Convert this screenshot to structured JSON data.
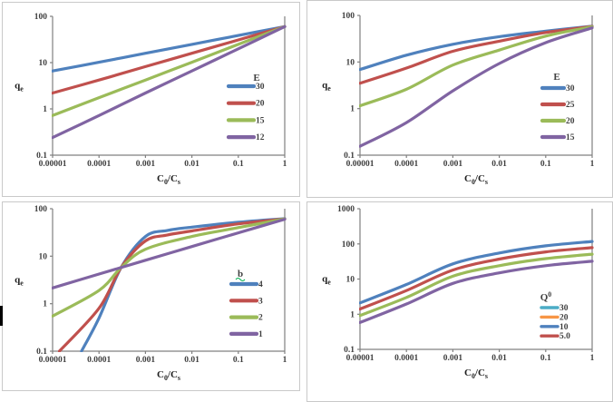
{
  "palette": {
    "blue": "#4F81BD",
    "red": "#C0504D",
    "green": "#9BBB59",
    "purple": "#8064A2",
    "teal": "#4BACC6",
    "orange": "#F79646",
    "axis_line": "#808080",
    "tick_text": "#3F3F3F",
    "axis_title_text": "#1F1F1F",
    "panel_border": "#C9C9C9",
    "wavy_underline": "#00B050",
    "cursor_mark": "#000000"
  },
  "chart_data": [
    {
      "id": "top-left",
      "type": "line",
      "x_scale": "log",
      "y_scale": "log",
      "xlim": [
        1e-05,
        1
      ],
      "ylim": [
        0.1,
        100
      ],
      "grid": false,
      "x_tick_values": [
        1e-05,
        0.0001,
        0.001,
        0.01,
        0.1,
        1
      ],
      "x_tick_labels": [
        "0.00001",
        "0.0001",
        "0.001",
        "0.01",
        "0.1",
        "1"
      ],
      "y_tick_values": [
        0.1,
        1,
        10,
        100
      ],
      "y_tick_labels": [
        "0.1",
        "1",
        "10",
        "100"
      ],
      "xlabel": [
        {
          "t": "C"
        },
        {
          "t": "0",
          "pos": "sub"
        },
        {
          "t": "/C"
        },
        {
          "t": "s",
          "pos": "sub"
        }
      ],
      "ylabel": [
        {
          "t": "q"
        },
        {
          "t": "e",
          "pos": "sub"
        }
      ],
      "legend_position": "right-middle",
      "legend_title": [
        {
          "t": "E"
        }
      ],
      "legend_title_decoration": "none",
      "legend": [
        {
          "label": "30",
          "color": "#4F81BD"
        },
        {
          "label": "20",
          "color": "#C0504D"
        },
        {
          "label": "15",
          "color": "#9BBB59"
        },
        {
          "label": "12",
          "color": "#8064A2"
        }
      ],
      "series": [
        {
          "name": "30",
          "color": "#4F81BD",
          "points": [
            [
              1e-05,
              6.6
            ],
            [
              0.0001,
              10.2
            ],
            [
              0.001,
              15.9
            ],
            [
              0.01,
              24.8
            ],
            [
              0.1,
              38.6
            ],
            [
              1,
              60
            ]
          ]
        },
        {
          "name": "20",
          "color": "#C0504D",
          "points": [
            [
              1e-05,
              2.2
            ],
            [
              0.0001,
              4.2
            ],
            [
              0.001,
              8.2
            ],
            [
              0.01,
              15.9
            ],
            [
              0.1,
              30.9
            ],
            [
              1,
              60
            ]
          ]
        },
        {
          "name": "15",
          "color": "#9BBB59",
          "points": [
            [
              1e-05,
              0.72
            ],
            [
              0.0001,
              1.75
            ],
            [
              0.001,
              4.2
            ],
            [
              0.01,
              10.2
            ],
            [
              0.1,
              24.8
            ],
            [
              1,
              60
            ]
          ]
        },
        {
          "name": "12",
          "color": "#8064A2",
          "points": [
            [
              1e-05,
              0.24
            ],
            [
              0.0001,
              0.72
            ],
            [
              0.001,
              2.2
            ],
            [
              0.01,
              6.6
            ],
            [
              0.1,
              19.9
            ],
            [
              1,
              60
            ]
          ]
        }
      ]
    },
    {
      "id": "top-right",
      "type": "line",
      "x_scale": "log",
      "y_scale": "log",
      "xlim": [
        1e-05,
        1
      ],
      "ylim": [
        0.1,
        100
      ],
      "grid": false,
      "x_tick_values": [
        1e-05,
        0.0001,
        0.001,
        0.01,
        0.1,
        1
      ],
      "x_tick_labels": [
        "0.00001",
        "0.0001",
        "0.001",
        "0.01",
        "0.1",
        "1"
      ],
      "y_tick_values": [
        0.1,
        1,
        10,
        100
      ],
      "y_tick_labels": [
        "0.1",
        "1",
        "10",
        "100"
      ],
      "xlabel": [
        {
          "t": "C"
        },
        {
          "t": "0",
          "pos": "sub"
        },
        {
          "t": "/C"
        },
        {
          "t": "s",
          "pos": "sub"
        }
      ],
      "ylabel": [
        {
          "t": "q"
        },
        {
          "t": "e",
          "pos": "sub"
        }
      ],
      "legend_position": "right-middle",
      "legend_title": [
        {
          "t": "E"
        }
      ],
      "legend_title_decoration": "none",
      "legend": [
        {
          "label": "30",
          "color": "#4F81BD"
        },
        {
          "label": "25",
          "color": "#C0504D"
        },
        {
          "label": "20",
          "color": "#9BBB59"
        },
        {
          "label": "15",
          "color": "#8064A2"
        }
      ],
      "series": [
        {
          "name": "30",
          "color": "#4F81BD",
          "points": [
            [
              1e-05,
              6.9
            ],
            [
              0.0001,
              14
            ],
            [
              0.001,
              24
            ],
            [
              0.01,
              35
            ],
            [
              0.1,
              46
            ],
            [
              1,
              59
            ]
          ]
        },
        {
          "name": "25",
          "color": "#C0504D",
          "points": [
            [
              1e-05,
              3.5
            ],
            [
              0.0001,
              7.4
            ],
            [
              0.001,
              17
            ],
            [
              0.01,
              28
            ],
            [
              0.1,
              43
            ],
            [
              1,
              58
            ]
          ]
        },
        {
          "name": "20",
          "color": "#9BBB59",
          "points": [
            [
              1e-05,
              1.15
            ],
            [
              0.0001,
              2.6
            ],
            [
              0.001,
              8.6
            ],
            [
              0.01,
              18
            ],
            [
              0.1,
              36
            ],
            [
              1,
              57
            ]
          ]
        },
        {
          "name": "15",
          "color": "#8064A2",
          "points": [
            [
              1e-05,
              0.155
            ],
            [
              0.0001,
              0.5
            ],
            [
              0.001,
              2.4
            ],
            [
              0.01,
              9.3
            ],
            [
              0.1,
              26
            ],
            [
              1,
              54
            ]
          ]
        }
      ]
    },
    {
      "id": "bottom-left",
      "type": "line",
      "x_scale": "log",
      "y_scale": "log",
      "xlim": [
        1e-05,
        1
      ],
      "ylim": [
        0.1,
        100
      ],
      "grid": false,
      "x_tick_values": [
        1e-05,
        0.0001,
        0.001,
        0.01,
        0.1,
        1
      ],
      "x_tick_labels": [
        "0.00001",
        "0.0001",
        "0.001",
        "0.01",
        "0.1",
        "1"
      ],
      "y_tick_values": [
        0.1,
        1,
        10,
        100
      ],
      "y_tick_labels": [
        "0.1",
        "1",
        "10",
        "100"
      ],
      "xlabel": [
        {
          "t": "C"
        },
        {
          "t": "0",
          "pos": "sub"
        },
        {
          "t": "/C"
        },
        {
          "t": "s",
          "pos": "sub"
        }
      ],
      "ylabel": [
        {
          "t": "q"
        },
        {
          "t": "e",
          "pos": "sub"
        }
      ],
      "legend_position": "right-middle",
      "legend_title": [
        {
          "t": "b"
        }
      ],
      "legend_title_decoration": "green-wavy-underline",
      "legend": [
        {
          "label": "4",
          "color": "#4F81BD"
        },
        {
          "label": "3",
          "color": "#C0504D"
        },
        {
          "label": "2",
          "color": "#9BBB59"
        },
        {
          "label": "1",
          "color": "#8064A2"
        }
      ],
      "series": [
        {
          "name": "4",
          "color": "#4F81BD",
          "points": [
            [
              4.2e-05,
              0.1
            ],
            [
              0.0001,
              0.5
            ],
            [
              0.0003,
              5.8
            ],
            [
              0.001,
              26
            ],
            [
              0.003,
              35
            ],
            [
              0.01,
              41
            ],
            [
              0.1,
              52
            ],
            [
              1,
              62
            ]
          ]
        },
        {
          "name": "3",
          "color": "#C0504D",
          "points": [
            [
              1.4e-05,
              0.1
            ],
            [
              0.0001,
              0.8
            ],
            [
              0.0003,
              5.8
            ],
            [
              0.001,
              21
            ],
            [
              0.003,
              28
            ],
            [
              0.01,
              34
            ],
            [
              0.1,
              48
            ],
            [
              1,
              61
            ]
          ]
        },
        {
          "name": "2",
          "color": "#9BBB59",
          "points": [
            [
              1e-05,
              0.55
            ],
            [
              0.0001,
              1.9
            ],
            [
              0.0003,
              5.8
            ],
            [
              0.001,
              14
            ],
            [
              0.01,
              26
            ],
            [
              0.1,
              40
            ],
            [
              1,
              61
            ]
          ]
        },
        {
          "name": "1",
          "color": "#8064A2",
          "points": [
            [
              1e-05,
              2.15
            ],
            [
              0.0001,
              4.2
            ],
            [
              0.001,
              8.2
            ],
            [
              0.01,
              16
            ],
            [
              0.1,
              31
            ],
            [
              1,
              60
            ]
          ]
        }
      ]
    },
    {
      "id": "bottom-right",
      "type": "line",
      "x_scale": "log",
      "y_scale": "log",
      "xlim": [
        1e-05,
        1
      ],
      "ylim": [
        0.1,
        1000
      ],
      "grid": false,
      "x_tick_values": [
        1e-05,
        0.0001,
        0.001,
        0.01,
        0.1,
        1
      ],
      "x_tick_labels": [
        "0.00001",
        "0.0001",
        "0.001",
        "0.01",
        "0.1",
        "1"
      ],
      "y_tick_values": [
        0.1,
        1,
        10,
        100,
        1000
      ],
      "y_tick_labels": [
        "0.1",
        "1",
        "10",
        "100",
        "1000"
      ],
      "xlabel": [
        {
          "t": "C"
        },
        {
          "t": "0",
          "pos": "sub"
        },
        {
          "t": "/C"
        },
        {
          "t": "s",
          "pos": "sub"
        }
      ],
      "ylabel": [
        {
          "t": "q"
        },
        {
          "t": "e",
          "pos": "sub"
        }
      ],
      "legend_position": "right-lower-compact",
      "legend_title": [
        {
          "t": "Q"
        },
        {
          "t": "0",
          "pos": "sup"
        }
      ],
      "legend_title_decoration": "none",
      "legend": [
        {
          "label": "30",
          "color": "#4BACC6"
        },
        {
          "label": "20",
          "color": "#F79646"
        },
        {
          "label": "10",
          "color": "#4F81BD"
        },
        {
          "label": "5.0",
          "color": "#C0504D"
        }
      ],
      "series": [
        {
          "name": "line-1",
          "color": "#4F81BD",
          "points": [
            [
              1e-05,
              2.1
            ],
            [
              0.0001,
              7
            ],
            [
              0.001,
              27
            ],
            [
              0.01,
              55
            ],
            [
              0.1,
              88
            ],
            [
              1,
              117
            ]
          ]
        },
        {
          "name": "line-2",
          "color": "#C0504D",
          "points": [
            [
              1e-05,
              1.4
            ],
            [
              0.0001,
              4.7
            ],
            [
              0.001,
              18
            ],
            [
              0.01,
              37
            ],
            [
              0.1,
              59
            ],
            [
              1,
              78
            ]
          ]
        },
        {
          "name": "line-3",
          "color": "#9BBB59",
          "points": [
            [
              1e-05,
              0.92
            ],
            [
              0.0001,
              3
            ],
            [
              0.001,
              12
            ],
            [
              0.01,
              24
            ],
            [
              0.1,
              38
            ],
            [
              1,
              51
            ]
          ]
        },
        {
          "name": "line-4",
          "color": "#8064A2",
          "points": [
            [
              1e-05,
              0.58
            ],
            [
              0.0001,
              1.95
            ],
            [
              0.001,
              7.5
            ],
            [
              0.01,
              15
            ],
            [
              0.1,
              24
            ],
            [
              1,
              32
            ]
          ]
        }
      ]
    }
  ]
}
